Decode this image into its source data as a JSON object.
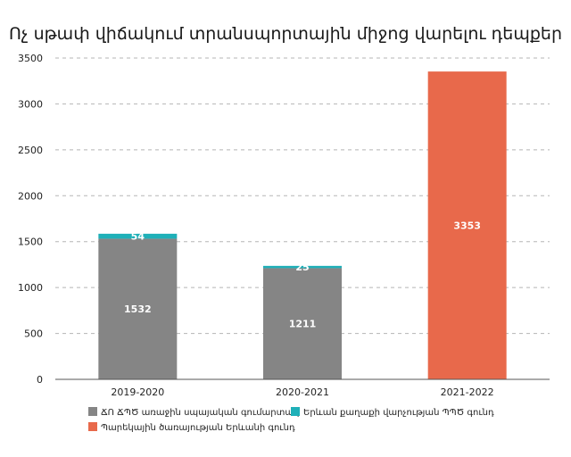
{
  "chart_data": {
    "type": "bar",
    "stacked": true,
    "title": "Ոչ սթափ վիճակում տրանսպորտային միջոց վարելու դեպքեր",
    "categories": [
      "2019-2020",
      "2020-2021",
      "2021-2022"
    ],
    "series": [
      {
        "name": "ՃՈ ՃՊԾ առաջին սպայական գումարտակ",
        "color": "#858585",
        "values": [
          1532,
          1211,
          0
        ]
      },
      {
        "name": "Երևան քաղաքի վարչության ՊՊԾ գունդ",
        "color": "#1fb0b8",
        "values": [
          54,
          25,
          0
        ]
      },
      {
        "name": "Պարեկային ծառայության Երևանի գունդ",
        "color": "#e8694b",
        "values": [
          0,
          0,
          3353
        ]
      }
    ],
    "ylim": [
      0,
      3500
    ],
    "yticks": [
      0,
      500,
      1000,
      1500,
      2000,
      2500,
      3000,
      3500
    ],
    "grid": true,
    "legend_position": "bottom"
  }
}
